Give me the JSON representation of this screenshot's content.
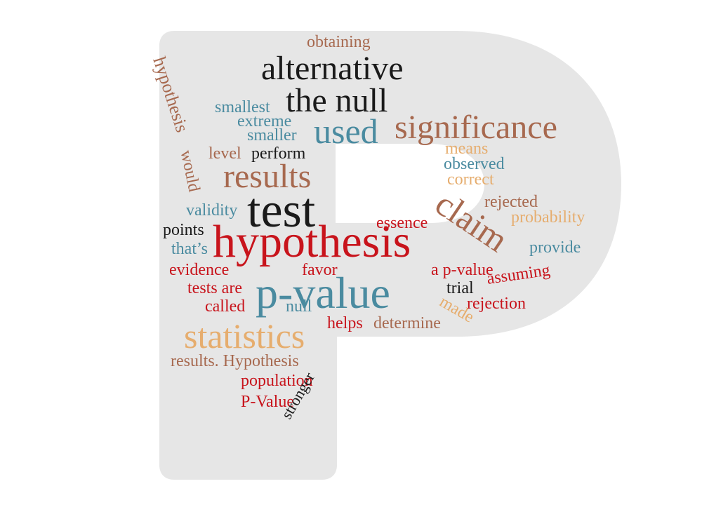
{
  "colors": {
    "background": "#ffffff",
    "shape_fill": "#e6e6e6",
    "brown": "#a7694f",
    "black": "#1a1a1a",
    "teal": "#4a8ba0",
    "red": "#c8141c",
    "orange": "#e6ad6e"
  },
  "words": [
    {
      "text": "obtaining",
      "color": "brown"
    },
    {
      "text": "alternative",
      "color": "black"
    },
    {
      "text": "hypothesis",
      "color": "brown"
    },
    {
      "text": "the null",
      "color": "black"
    },
    {
      "text": "smallest",
      "color": "teal"
    },
    {
      "text": "extreme",
      "color": "teal"
    },
    {
      "text": "smaller",
      "color": "teal"
    },
    {
      "text": "used",
      "color": "teal"
    },
    {
      "text": "significance",
      "color": "brown"
    },
    {
      "text": "would",
      "color": "brown"
    },
    {
      "text": "level",
      "color": "brown"
    },
    {
      "text": "perform",
      "color": "black"
    },
    {
      "text": "means",
      "color": "orange"
    },
    {
      "text": "observed",
      "color": "teal"
    },
    {
      "text": "results",
      "color": "brown"
    },
    {
      "text": "correct",
      "color": "orange"
    },
    {
      "text": "claim",
      "color": "brown"
    },
    {
      "text": "rejected",
      "color": "brown"
    },
    {
      "text": "validity",
      "color": "teal"
    },
    {
      "text": "test",
      "color": "black"
    },
    {
      "text": "probability",
      "color": "orange"
    },
    {
      "text": "points",
      "color": "black"
    },
    {
      "text": "essence",
      "color": "red"
    },
    {
      "text": "that’s",
      "color": "teal"
    },
    {
      "text": "hypothesis",
      "color": "red"
    },
    {
      "text": "provide",
      "color": "teal"
    },
    {
      "text": "evidence",
      "color": "red"
    },
    {
      "text": "favor",
      "color": "red"
    },
    {
      "text": "a p-value",
      "color": "red"
    },
    {
      "text": "assuming",
      "color": "red"
    },
    {
      "text": "tests are",
      "color": "red"
    },
    {
      "text": "p-value",
      "color": "teal"
    },
    {
      "text": "trial",
      "color": "black"
    },
    {
      "text": "called",
      "color": "red"
    },
    {
      "text": "null",
      "color": "teal"
    },
    {
      "text": "made",
      "color": "orange"
    },
    {
      "text": "rejection",
      "color": "red"
    },
    {
      "text": "statistics",
      "color": "orange"
    },
    {
      "text": "helps",
      "color": "red"
    },
    {
      "text": "determine",
      "color": "brown"
    },
    {
      "text": "results. Hypothesis",
      "color": "brown"
    },
    {
      "text": "population",
      "color": "red"
    },
    {
      "text": "P-Value",
      "color": "red"
    },
    {
      "text": "stronger",
      "color": "black"
    }
  ]
}
